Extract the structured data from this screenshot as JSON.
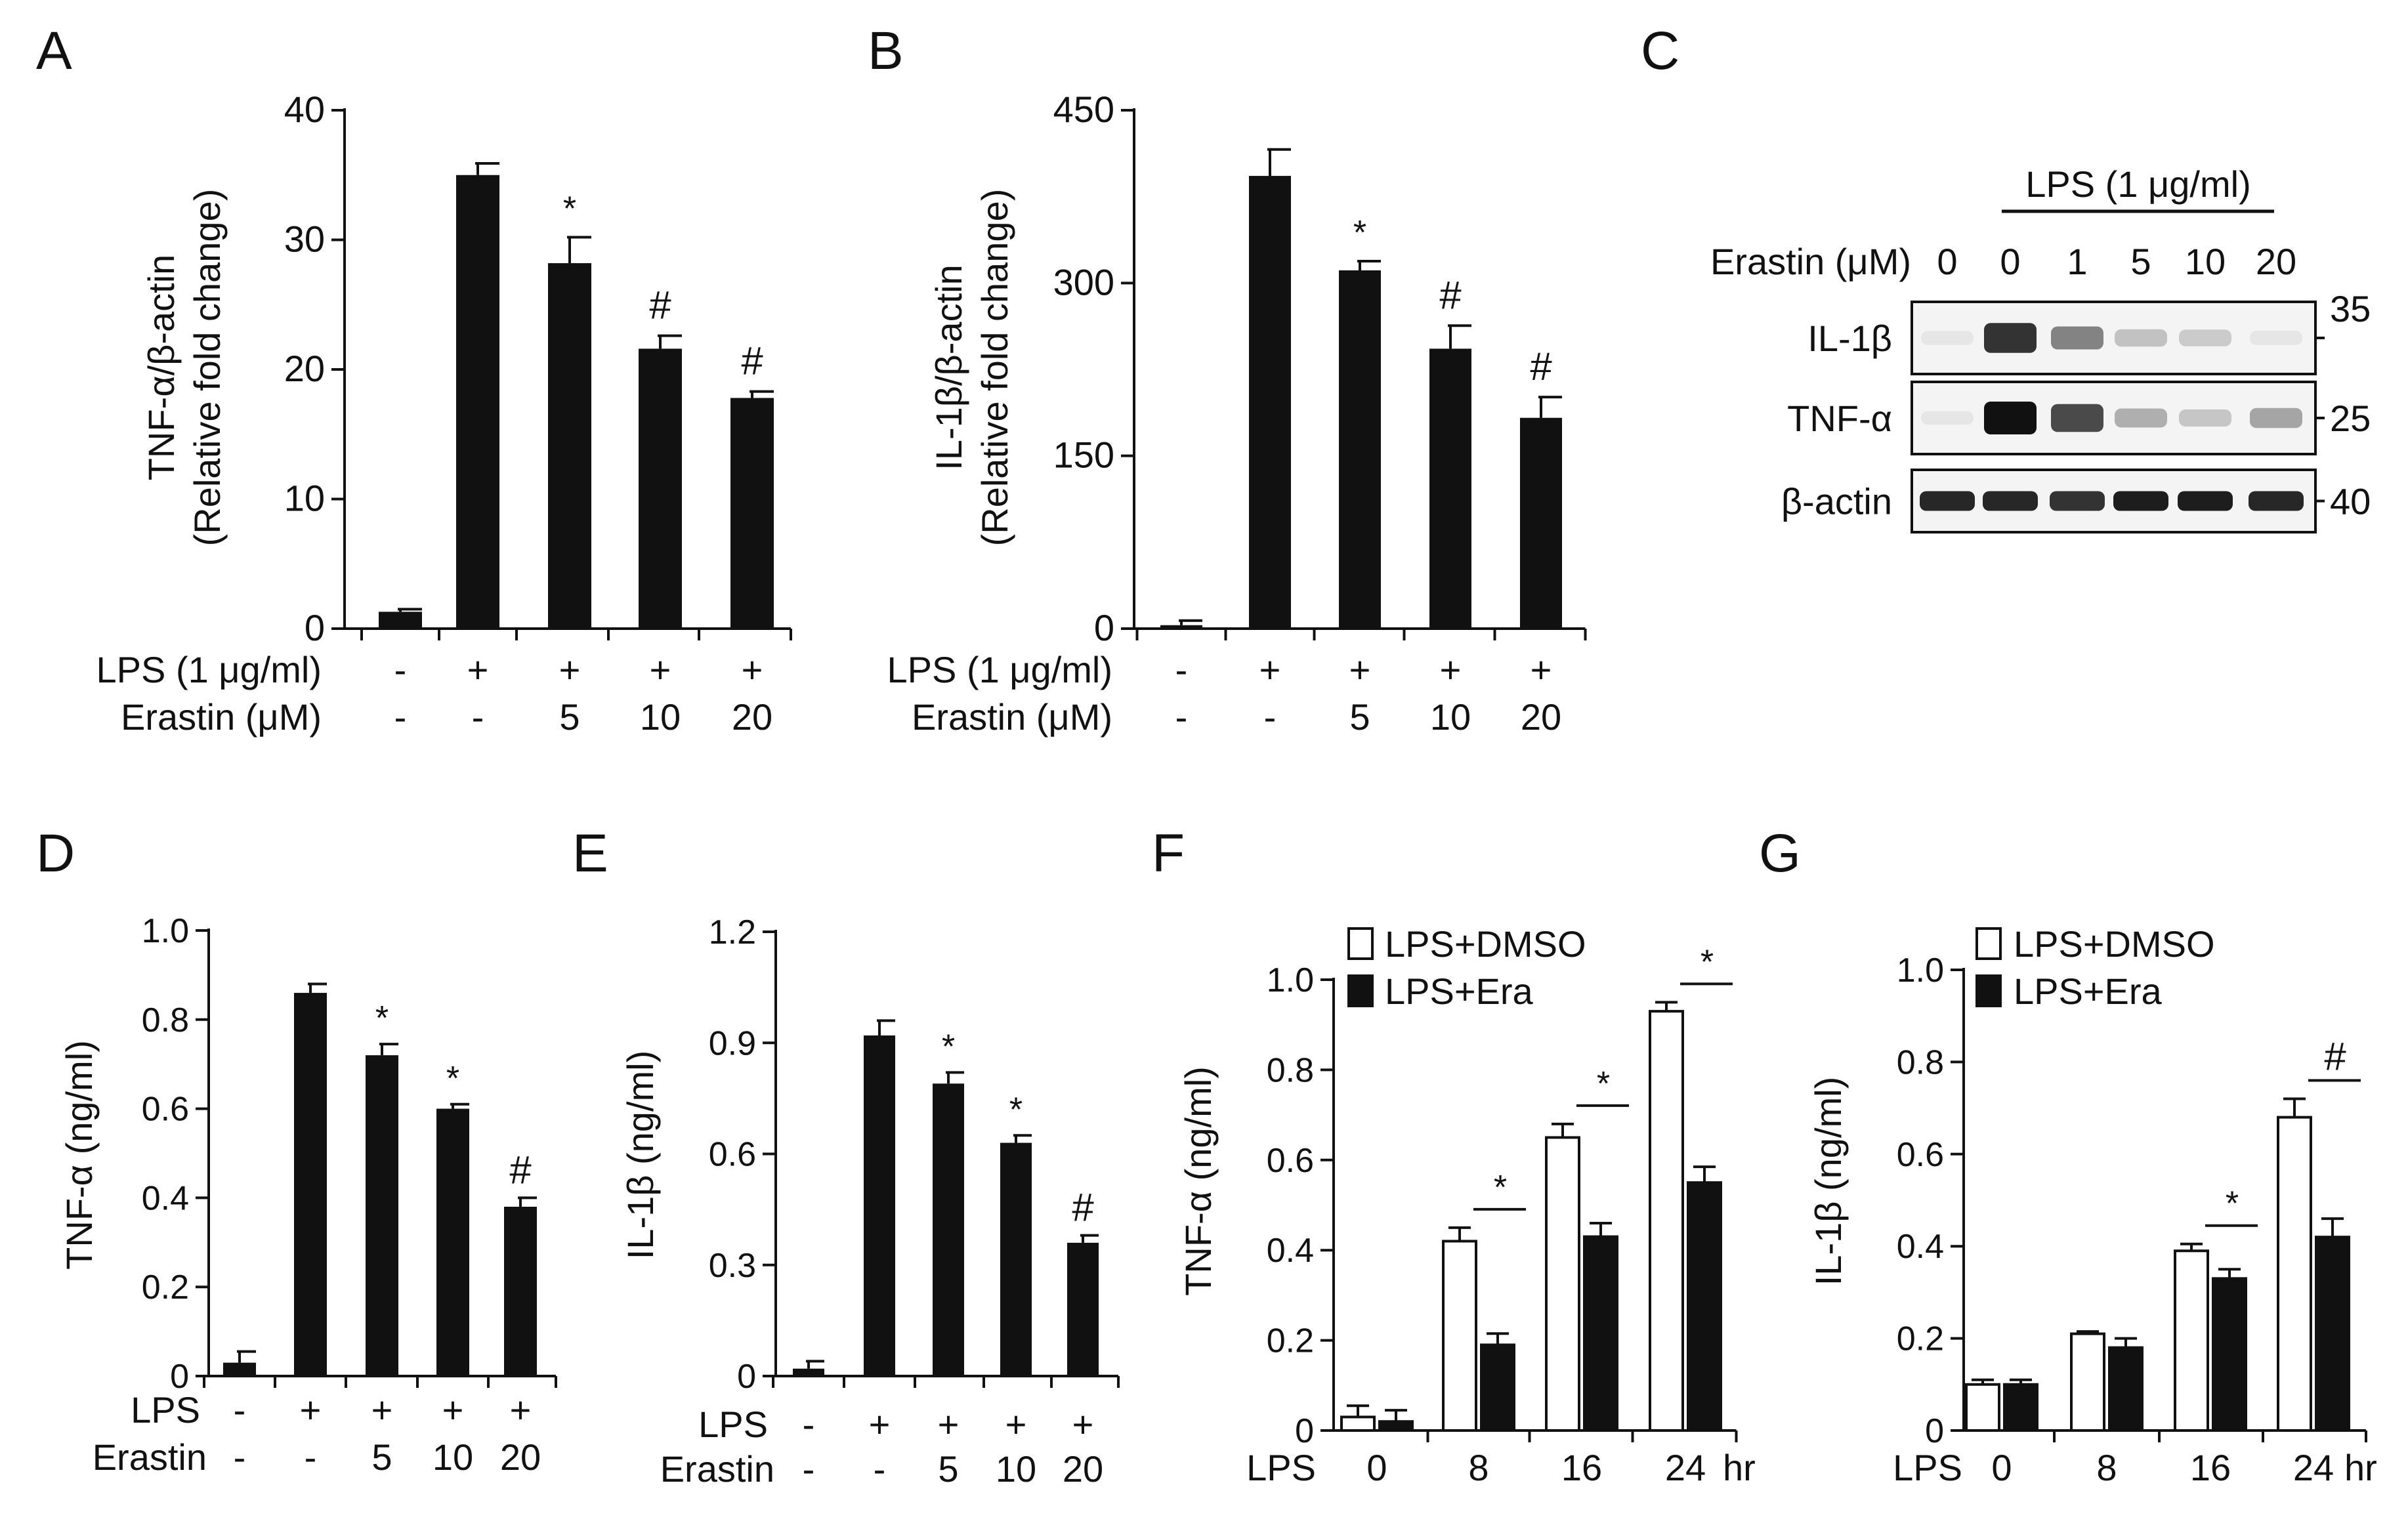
{
  "chart_data": [
    {
      "panel": "A",
      "type": "bar",
      "ylabel_line1": "TNF-α/β-actin",
      "ylabel_line2": "(Relative fold change)",
      "ylim": [
        0,
        40
      ],
      "yticks": [
        0,
        10,
        20,
        30,
        40
      ],
      "row1_label": "LPS (1 μg/ml)",
      "row1": [
        "-",
        "+",
        "+",
        "+",
        "+"
      ],
      "row2_label": "Erastin (μM)",
      "row2": [
        "-",
        "-",
        "5",
        "10",
        "20"
      ],
      "values": [
        1.3,
        35.0,
        28.2,
        21.6,
        17.8
      ],
      "errors": [
        0.2,
        0.9,
        2.0,
        1.0,
        0.5
      ],
      "marks": [
        "",
        "",
        "*",
        "#",
        "#"
      ]
    },
    {
      "panel": "B",
      "type": "bar",
      "ylabel_line1": "IL-1β/β-actin",
      "ylabel_line2": "(Relative fold change)",
      "ylim": [
        0,
        450
      ],
      "yticks": [
        0,
        150,
        300,
        450
      ],
      "row1_label": "LPS (1 μg/ml)",
      "row1": [
        "-",
        "+",
        "+",
        "+",
        "+"
      ],
      "row2_label": "Erastin (μM)",
      "row2": [
        "-",
        "-",
        "5",
        "10",
        "20"
      ],
      "values": [
        3,
        393,
        311,
        243,
        183
      ],
      "errors": [
        4,
        23,
        8,
        20,
        18
      ],
      "marks": [
        "",
        "",
        "*",
        "#",
        "#"
      ]
    },
    {
      "panel": "C",
      "type": "blot",
      "header": "LPS (1 μg/ml)",
      "lane_label": "Erastin (μM)",
      "lanes": [
        "0",
        "0",
        "1",
        "5",
        "10",
        "20"
      ],
      "rows": [
        {
          "name": "IL-1β",
          "kda": "35",
          "intensity": [
            0.05,
            0.85,
            0.5,
            0.22,
            0.18,
            0.06
          ]
        },
        {
          "name": "TNF-α",
          "kda": "25",
          "intensity": [
            0.02,
            1.0,
            0.75,
            0.3,
            0.2,
            0.35
          ]
        },
        {
          "name": "β-actin",
          "kda": "40",
          "intensity": [
            0.9,
            0.9,
            0.85,
            0.95,
            0.95,
            0.9
          ]
        }
      ]
    },
    {
      "panel": "D",
      "type": "bar",
      "ylabel_line1": "TNF-α (ng/ml)",
      "ylabel_line2": "",
      "ylim": [
        0,
        1.0
      ],
      "yticks": [
        "0",
        "0.2",
        "0.4",
        "0.6",
        "0.8",
        "1.0"
      ],
      "row1_label": "LPS",
      "row1": [
        "-",
        "+",
        "+",
        "+",
        "+"
      ],
      "row2_label": "Erastin",
      "row2": [
        "-",
        "-",
        "5",
        "10",
        "20"
      ],
      "values": [
        0.03,
        0.86,
        0.72,
        0.6,
        0.38
      ],
      "errors": [
        0.025,
        0.02,
        0.025,
        0.01,
        0.02
      ],
      "marks": [
        "",
        "",
        "*",
        "*",
        "#"
      ]
    },
    {
      "panel": "E",
      "type": "bar",
      "ylabel_line1": "IL-1β (ng/ml)",
      "ylabel_line2": "",
      "ylim": [
        0,
        1.2
      ],
      "yticks": [
        "0",
        "0.3",
        "0.6",
        "0.9",
        "1.2"
      ],
      "row1_label": "LPS",
      "row1": [
        "-",
        "+",
        "+",
        "+",
        "+"
      ],
      "row2_label": "Erastin",
      "row2": [
        "-",
        "-",
        "5",
        "10",
        "20"
      ],
      "values": [
        0.02,
        0.92,
        0.79,
        0.63,
        0.36
      ],
      "errors": [
        0.02,
        0.04,
        0.03,
        0.02,
        0.02
      ],
      "marks": [
        "",
        "",
        "*",
        "*",
        "#"
      ]
    },
    {
      "panel": "F",
      "type": "bar",
      "ylabel_line1": "TNF-α (ng/ml)",
      "ylim": [
        0,
        1.0
      ],
      "yticks": [
        "0",
        "0.2",
        "0.4",
        "0.6",
        "0.8",
        "1.0"
      ],
      "xlabel_left": "LPS",
      "xlabel_right": "hr",
      "categories": [
        "0",
        "8",
        "16",
        "24"
      ],
      "series": [
        {
          "name": "LPS+DMSO",
          "values": [
            0.03,
            0.42,
            0.65,
            0.93
          ],
          "errors": [
            0.025,
            0.03,
            0.03,
            0.02
          ]
        },
        {
          "name": "LPS+Era",
          "values": [
            0.02,
            0.19,
            0.43,
            0.55
          ],
          "errors": [
            0.025,
            0.025,
            0.03,
            0.035
          ]
        }
      ],
      "marks": [
        "",
        "*",
        "*",
        "*"
      ]
    },
    {
      "panel": "G",
      "type": "bar",
      "ylabel_line1": "IL-1β (ng/ml)",
      "ylim": [
        0,
        1.0
      ],
      "yticks": [
        "0",
        "0.2",
        "0.4",
        "0.6",
        "0.8",
        "1.0"
      ],
      "xlabel_left": "LPS",
      "xlabel_right": "hr",
      "categories": [
        "0",
        "8",
        "16",
        "24"
      ],
      "series": [
        {
          "name": "LPS+DMSO",
          "values": [
            0.1,
            0.21,
            0.39,
            0.68
          ],
          "errors": [
            0.01,
            0.005,
            0.015,
            0.04
          ]
        },
        {
          "name": "LPS+Era",
          "values": [
            0.1,
            0.18,
            0.33,
            0.42
          ],
          "errors": [
            0.01,
            0.02,
            0.02,
            0.04
          ]
        }
      ],
      "marks": [
        "",
        "",
        "*",
        "#"
      ]
    }
  ]
}
